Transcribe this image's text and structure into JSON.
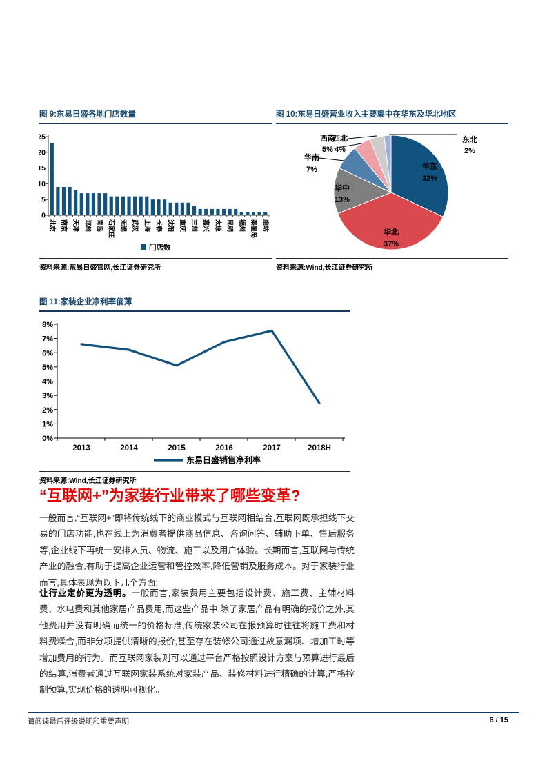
{
  "figures": {
    "fig9": {
      "title": "图 9:东易日盛各地门店数量",
      "source": "资料来源:东易日盛官网,长江证券研究所"
    },
    "fig10": {
      "title": "图 10:东易日盛营业收入主要集中在华东及华北地区",
      "source": "资料来源:Wind,长江证券研究所"
    },
    "fig11": {
      "title": "图 11:家装企业净利率偏薄",
      "source": "资料来源:Wind,长江证券研究所"
    }
  },
  "section": {
    "heading": "“互联网+”为家装行业带来了哪些变革?",
    "paragraph1": "一般而言,“互联网+”即将传统线下的商业模式与互联网相结合,互联网既承担线下交易的门店功能,也在线上为消费者提供商品信息、咨询问答、辅助下单、售后服务等,企业线下再统一安排人员、物流、施工以及用户体验。长期而言,互联网与传统产业的融合,有助于提高企业运营和管控效率,降低营销及服务成本。对于家装行业而言,具体表现为以下几个方面:",
    "paragraph2_lead": "让行业定价更为透明。",
    "paragraph2_rest": "一般而言,家装费用主要包括设计费、施工费、主辅材料费、水电费和其他家居产品费用,而这些产品中,除了家居产品有明确的报价之外,其他费用并没有明确而统一的价格标准,传统家装公司在报预算时往往将施工费和材料费糅合,而非分项提供清晰的报价,甚至存在装修公司通过故意漏项、增加工时等增加费用的行为。而互联网家装则可以通过平台严格按照设计方案与预算进行最后的结算,消费者通过互联网家装系统对家装产品、装修材料进行精确的计算,严格控制预算,实现价格的透明可视化。"
  },
  "footer": {
    "disclaimer": "请阅读最后评级说明和重要声明",
    "page_number": "6 / 15"
  },
  "colors": {
    "navy": "#11537e",
    "title_navy": "#1b4a70",
    "rule_navy": "#17365d",
    "heading_red": "#e60000"
  },
  "chart_data": [
    {
      "type": "bar",
      "title": "东易日盛各地门店数量",
      "values": [
        23,
        9,
        9,
        9,
        8,
        7,
        7,
        7,
        7,
        7,
        6,
        6,
        6,
        6,
        6,
        6,
        6,
        5,
        5,
        5,
        4,
        4,
        4,
        4,
        3,
        2,
        2,
        2,
        2,
        2,
        2,
        2,
        1,
        1,
        1,
        1,
        1
      ],
      "x_labels": [
        "北京",
        "南京",
        "天津",
        "郑州",
        "青岛",
        "石家庄",
        "无锡",
        "武汉",
        "上海",
        "长春",
        "沈阳",
        "重庆",
        "兰州",
        "嘉兴",
        "太原",
        "昆明",
        "福州",
        "秦皇岛",
        "廊坊"
      ],
      "x_label_every": 2,
      "legend": "门店数",
      "ylim": [
        0,
        25
      ],
      "yticks": [
        0,
        5,
        10,
        15,
        20,
        25
      ],
      "bar_color": "#11537e",
      "grid": false
    },
    {
      "type": "pie",
      "title": "东易日盛营业收入主要集中在华东及华北地区",
      "start_angle_deg": 0,
      "direction": "clockwise",
      "slices": [
        {
          "name": "华东",
          "value": 32,
          "color": "#11537e"
        },
        {
          "name": "华北",
          "value": 37,
          "color": "#d9494d"
        },
        {
          "name": "华中",
          "value": 13,
          "color": "#7f7f7f"
        },
        {
          "name": "华南",
          "value": 7,
          "color": "#4e80ab"
        },
        {
          "name": "西南",
          "value": 5,
          "color": "#eda0a6"
        },
        {
          "name": "西北",
          "value": 4,
          "color": "#cfcccc"
        },
        {
          "name": "东北",
          "value": 2,
          "color": "#9fb0d8"
        }
      ]
    },
    {
      "type": "line",
      "title": "家装企业净利率偏薄",
      "categories": [
        "2013",
        "2014",
        "2015",
        "2016",
        "2017",
        "2018H"
      ],
      "series": [
        {
          "name": "东易日盛销售净利率",
          "values": [
            6.6,
            6.2,
            5.1,
            6.75,
            7.55,
            2.45
          ]
        }
      ],
      "ylim": [
        0,
        8
      ],
      "ytick_step": 1,
      "ytick_format": "percent",
      "line_color": "#11537e",
      "legend_position": "bottom",
      "grid": false
    }
  ]
}
